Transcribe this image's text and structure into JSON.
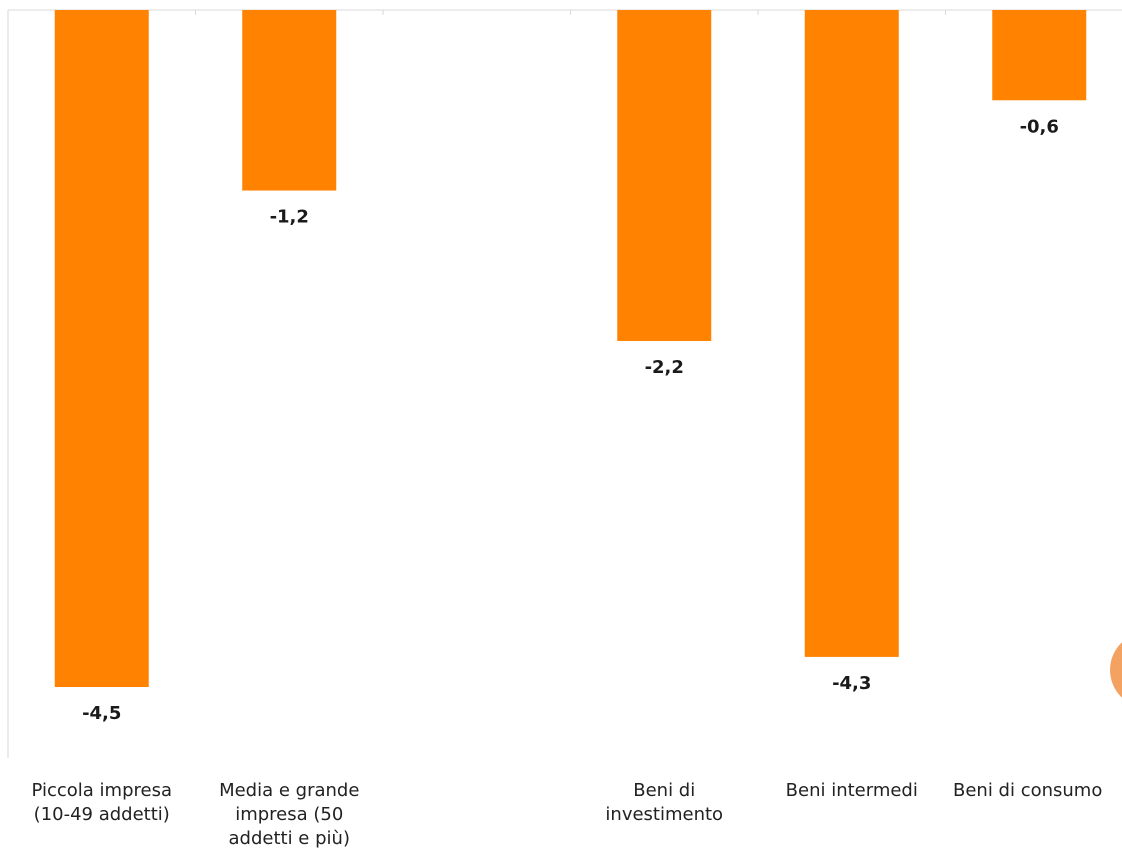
{
  "chart_data": {
    "type": "bar",
    "categories": [
      [
        "Piccola impresa",
        "(10-49 addetti)"
      ],
      [
        "Media e grande",
        "impresa (50",
        "addetti e più)"
      ],
      [
        ""
      ],
      [
        "Beni di",
        "investimento"
      ],
      [
        "Beni intermedi"
      ],
      [
        "Beni di consumo"
      ]
    ],
    "values": [
      -4.5,
      -1.2,
      null,
      -2.2,
      -4.3,
      -0.6
    ],
    "value_labels": [
      "-4,5",
      "-1,2",
      "",
      "-2,2",
      "-4,3",
      "-0,6"
    ],
    "title": "",
    "xlabel": "",
    "ylabel": "",
    "ylim": [
      -4.5,
      0
    ],
    "grid": false,
    "legend": "none"
  },
  "colors": {
    "bar": "#FF8200",
    "axis": "#d9d9d9",
    "decoration": "#F4A261"
  }
}
